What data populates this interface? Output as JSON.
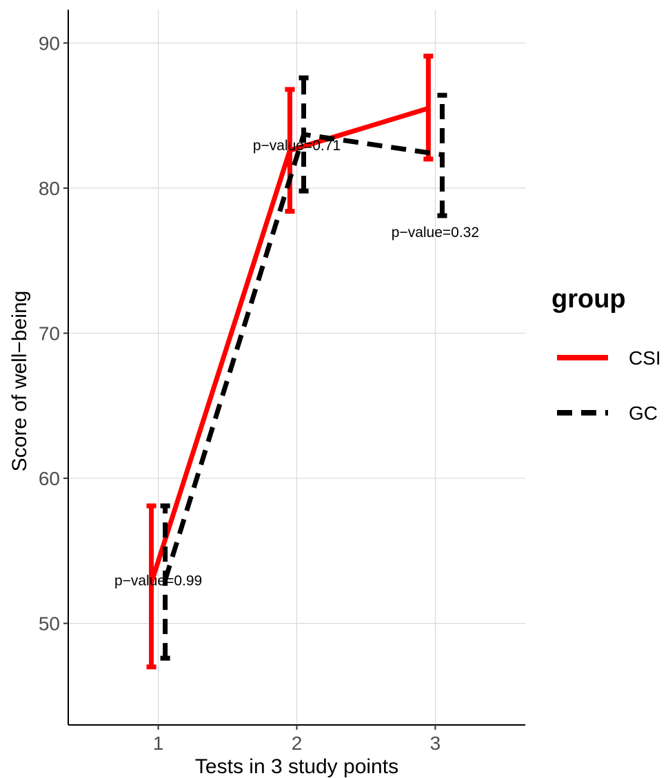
{
  "chart_data": {
    "type": "line",
    "xlabel": "Tests in 3 study points",
    "ylabel": "Score of well−being",
    "x": [
      1,
      2,
      3
    ],
    "x_tick_labels": [
      "1",
      "2",
      "3"
    ],
    "y_ticks": [
      50,
      60,
      70,
      80,
      90
    ],
    "y_tick_labels": [
      "50",
      "60",
      "70",
      "80",
      "90"
    ],
    "xlim": [
      0.35,
      3.65
    ],
    "ylim": [
      43,
      92.3
    ],
    "grid": true,
    "series": [
      {
        "name": "CSI",
        "color": "#ff0000",
        "dash": "solid",
        "values": [
          52.8,
          82.6,
          85.5
        ],
        "err_low": [
          47.0,
          78.4,
          82.0
        ],
        "err_high": [
          58.1,
          86.8,
          89.1
        ]
      },
      {
        "name": "GC",
        "color": "#000000",
        "dash": "dashed",
        "values": [
          53.0,
          83.7,
          82.3
        ],
        "err_low": [
          47.6,
          79.8,
          78.1
        ],
        "err_high": [
          58.1,
          87.6,
          86.4
        ]
      }
    ],
    "annotations": [
      {
        "text": "p−value=0.99",
        "x": 1,
        "y": 53
      },
      {
        "text": "p−value=0.71",
        "x": 2,
        "y": 83
      },
      {
        "text": "p−value=0.32",
        "x": 3,
        "y": 77
      }
    ],
    "legend": {
      "title": "group",
      "position": "right"
    }
  }
}
